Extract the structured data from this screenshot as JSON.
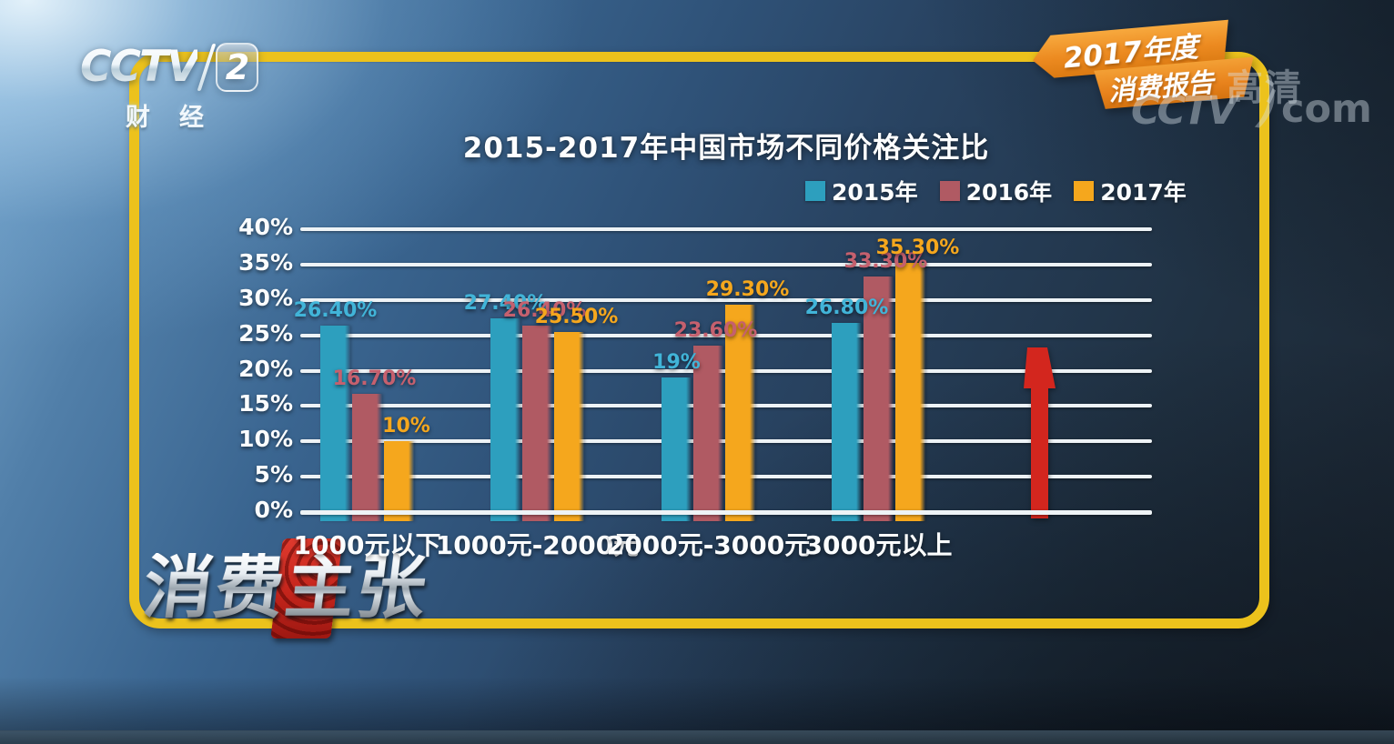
{
  "channel": {
    "brand": "CCTV",
    "number": "2",
    "caption_chars": [
      "财",
      "经"
    ]
  },
  "badge": {
    "line1": "2017年度",
    "line2": "消费报告"
  },
  "watermark": {
    "hd": "高清",
    "brand": "CCTV",
    "swoosh": ")",
    "suffix": "com"
  },
  "program_logo": {
    "text": "消费主张"
  },
  "chart_data": {
    "type": "bar",
    "title": "2015-2017年中国市场不同价格关注比",
    "categories": [
      "1000元以下",
      "1000元-2000元",
      "2000元-3000元",
      "3000元以上"
    ],
    "series": [
      {
        "name": "2015年",
        "color": "#2d9fbe",
        "label_color": "#41b4d8",
        "values": [
          26.4,
          27.4,
          19,
          26.8
        ],
        "value_labels": [
          "26.40%",
          "27.40%",
          "19%",
          "26.80%"
        ]
      },
      {
        "name": "2016年",
        "color": "#b05a63",
        "label_color": "#c5606e",
        "values": [
          16.7,
          26.4,
          23.6,
          33.3
        ],
        "value_labels": [
          "16.70%",
          "26.40%",
          "23.60%",
          "33.30%"
        ]
      },
      {
        "name": "2017年",
        "color": "#f5a71d",
        "label_color": "#f5a71d",
        "values": [
          10,
          25.5,
          29.3,
          35.3
        ],
        "value_labels": [
          "10%",
          "25.50%",
          "29.30%",
          "35.30%"
        ]
      }
    ],
    "ylim": [
      0,
      40
    ],
    "y_tick_labels": [
      "0%",
      "5%",
      "10%",
      "15%",
      "20%",
      "25%",
      "30%",
      "35%",
      "40%"
    ],
    "y_tick_values": [
      0,
      5,
      10,
      15,
      20,
      25,
      30,
      35,
      40
    ],
    "grid": true,
    "legend_position": "top-right",
    "annotation": {
      "type": "up-arrow",
      "color": "#d3261e"
    }
  }
}
